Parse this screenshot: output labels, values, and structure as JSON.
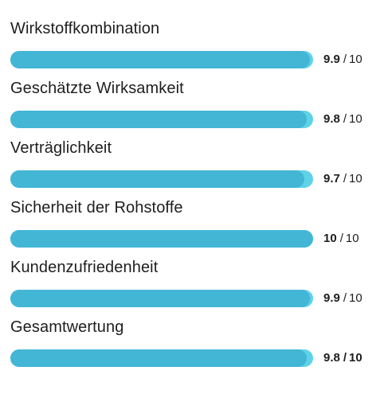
{
  "ratings": [
    {
      "label": "Wirkstoffkombination",
      "value": "9.9",
      "max": "10",
      "fraction": 0.99
    },
    {
      "label": "Geschätzte Wirksamkeit",
      "value": "9.8",
      "max": "10",
      "fraction": 0.98
    },
    {
      "label": "Verträglichkeit",
      "value": "9.7",
      "max": "10",
      "fraction": 0.97
    },
    {
      "label": "Sicherheit der Rohstoffe",
      "value": "10",
      "max": "10",
      "fraction": 1.0
    },
    {
      "label": "Kundenzufriedenheit",
      "value": "9.9",
      "max": "10",
      "fraction": 0.99
    },
    {
      "label": "Gesamtwertung",
      "value": "9.8",
      "max": "10",
      "fraction": 0.98
    }
  ],
  "separator": "/",
  "colors": {
    "bar_fill": "#43b6d6",
    "bar_track": "#5ed3e8",
    "text": "#1e1e1e"
  }
}
